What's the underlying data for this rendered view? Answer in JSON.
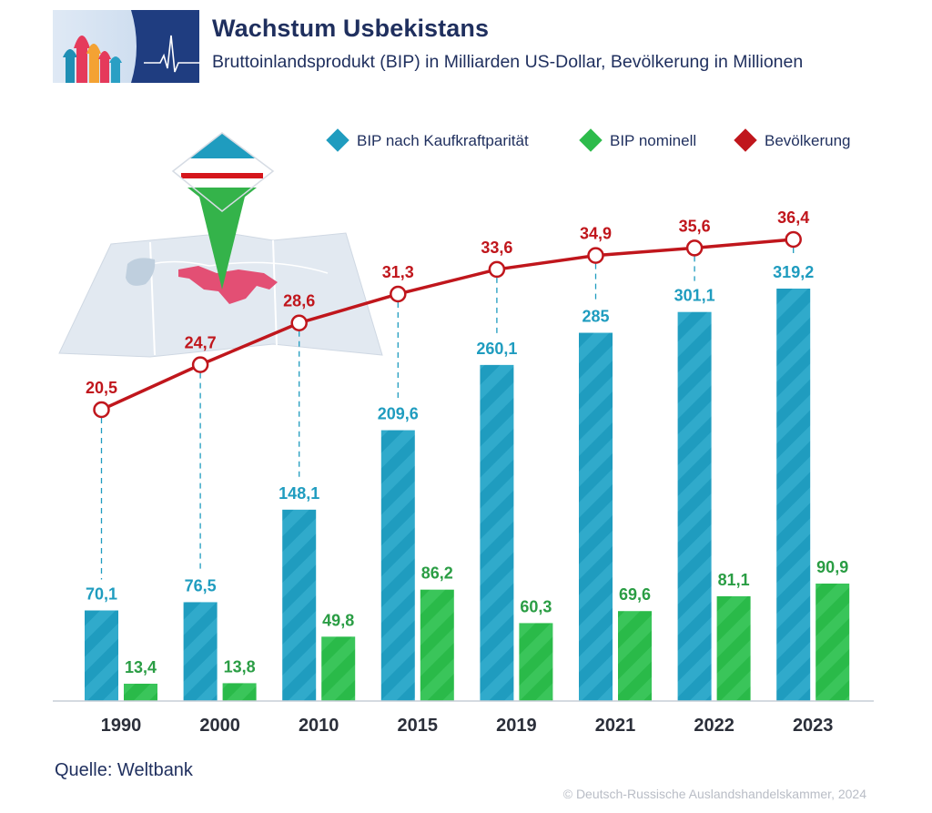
{
  "header": {
    "title": "Wachstum Usbekistans",
    "subtitle": "Bruttoinlandsprodukt (BIP) in Milliarden US-Dollar, Bevölkerung in Millionen"
  },
  "footer": {
    "source": "Quelle: Weltbank",
    "copyright": "© Deutsch-Russische Auslandshandelskammer, 2024"
  },
  "colors": {
    "ppp": "#1f9cbf",
    "nominal": "#2dbb4b",
    "population": "#c0161c",
    "text_dark": "#1f2f5e"
  },
  "chart_data": {
    "type": "bar",
    "title": "Wachstum Usbekistans",
    "categories": [
      "1990",
      "2000",
      "2010",
      "2015",
      "2019",
      "2021",
      "2022",
      "2023"
    ],
    "series": [
      {
        "name": "BIP nach Kaufkraftparität",
        "kind": "bar",
        "values": [
          70.1,
          76.5,
          148.1,
          209.6,
          260.1,
          285,
          301.1,
          319.2
        ],
        "labels": [
          "70,1",
          "76,5",
          "148,1",
          "209,6",
          "260,1",
          "285",
          "301,1",
          "319,2"
        ]
      },
      {
        "name": "BIP nominell",
        "kind": "bar",
        "values": [
          13.4,
          13.8,
          49.8,
          86.2,
          60.3,
          69.6,
          81.1,
          90.9
        ],
        "labels": [
          "13,4",
          "13,8",
          "49,8",
          "86,2",
          "60,3",
          "69,6",
          "81,1",
          "90,9"
        ]
      },
      {
        "name": "Bevölkerung",
        "kind": "line",
        "values": [
          20.5,
          24.7,
          28.6,
          31.3,
          33.6,
          34.9,
          35.6,
          36.4
        ],
        "labels": [
          "20,5",
          "24,7",
          "28,6",
          "31,3",
          "33,6",
          "34,9",
          "35,6",
          "36,4"
        ]
      }
    ],
    "bar_ylim": [
      0,
      400
    ],
    "line_ylim": [
      15,
      40
    ],
    "legend_position": "top-right",
    "grid": false
  }
}
